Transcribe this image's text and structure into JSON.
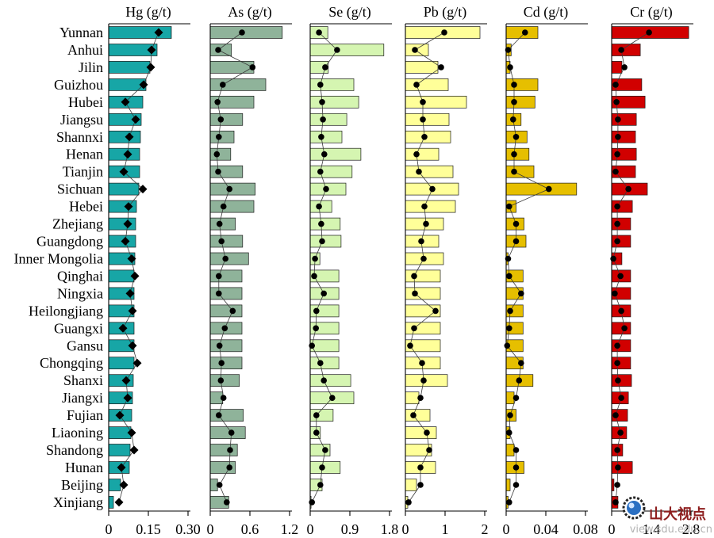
{
  "chart_data": {
    "type": "bar",
    "orientation": "horizontal",
    "grid": false,
    "categories": [
      "Yunnan",
      "Anhui",
      "Jilin",
      "Guizhou",
      "Hubei",
      "Jiangsu",
      "Shannxi",
      "Henan",
      "Tianjin",
      "Sichuan",
      "Hebei",
      "Zhejiang",
      "Guangdong",
      "Inner Mongolia",
      "Qinghai",
      "Ningxia",
      "Heilongjiang",
      "Guangxi",
      "Gansu",
      "Chongqing",
      "Shanxi",
      "Jiangxi",
      "Fujian",
      "Liaoning",
      "Shandong",
      "Hunan",
      "Beijing",
      "Xinjiang"
    ],
    "panels": [
      {
        "title": "Hg (g/t)",
        "xlim": [
          0,
          0.3
        ],
        "tick_values": [
          0,
          0.15,
          0.3
        ],
        "tick_labels": [
          "0",
          "0.15",
          "0.30"
        ],
        "bar_color": "#17a6a6",
        "marker": "diamond",
        "bars": [
          0.237,
          0.183,
          0.156,
          0.141,
          0.129,
          0.123,
          0.12,
          0.117,
          0.117,
          0.114,
          0.105,
          0.102,
          0.102,
          0.099,
          0.096,
          0.096,
          0.096,
          0.096,
          0.096,
          0.096,
          0.093,
          0.09,
          0.087,
          0.084,
          0.081,
          0.078,
          0.045,
          0.018
        ],
        "markers": [
          0.189,
          0.162,
          0.159,
          0.132,
          0.063,
          0.102,
          0.078,
          0.072,
          0.057,
          0.129,
          0.075,
          0.072,
          0.063,
          0.087,
          0.099,
          0.081,
          0.09,
          0.054,
          0.09,
          0.108,
          0.066,
          0.072,
          0.042,
          0.087,
          0.096,
          0.048,
          0.057,
          0.039
        ]
      },
      {
        "title": "As (g/t)",
        "xlim": [
          0,
          1.2
        ],
        "tick_values": [
          0,
          0.6,
          1.2
        ],
        "tick_labels": [
          "0",
          "0.6",
          "1.2"
        ],
        "bar_color": "#8fb39a",
        "marker": "circle",
        "bars": [
          1.09,
          0.32,
          0.66,
          0.84,
          0.66,
          0.49,
          0.36,
          0.31,
          0.49,
          0.68,
          0.66,
          0.38,
          0.49,
          0.58,
          0.48,
          0.48,
          0.48,
          0.48,
          0.48,
          0.48,
          0.44,
          0.19,
          0.5,
          0.53,
          0.41,
          0.38,
          0.11,
          0.28
        ],
        "markers": [
          0.48,
          0.12,
          0.64,
          0.19,
          0.11,
          0.16,
          0.13,
          0.1,
          0.12,
          0.29,
          0.2,
          0.14,
          0.17,
          0.23,
          0.13,
          0.13,
          0.34,
          0.22,
          0.14,
          0.17,
          0.16,
          0.2,
          0.13,
          0.32,
          0.3,
          0.29,
          0.14,
          0.25
        ]
      },
      {
        "title": "Se (g/t)",
        "xlim": [
          0,
          1.8
        ],
        "tick_values": [
          0,
          0.9,
          1.8
        ],
        "tick_labels": [
          "0",
          "0.9",
          "1.8"
        ],
        "bar_color": "#d5f5b1",
        "marker": "circle",
        "bars": [
          0.4,
          1.67,
          0.41,
          0.99,
          1.1,
          0.83,
          0.72,
          1.15,
          0.95,
          0.81,
          0.49,
          0.68,
          0.7,
          0.22,
          0.65,
          0.65,
          0.65,
          0.65,
          0.65,
          0.65,
          0.92,
          0.99,
          0.52,
          0.23,
          0.45,
          0.68,
          0.27,
          0.02
        ],
        "markers": [
          0.2,
          0.61,
          0.34,
          0.23,
          0.27,
          0.29,
          0.25,
          0.32,
          0.23,
          0.36,
          0.2,
          0.25,
          0.27,
          0.11,
          0.09,
          0.31,
          0.14,
          0.13,
          0.04,
          0.23,
          0.31,
          0.5,
          0.14,
          0.14,
          0.34,
          0.27,
          0.23,
          0.04
        ]
      },
      {
        "title": "Pb (g/t)",
        "xlim": [
          0,
          2
        ],
        "tick_values": [
          0,
          1,
          2
        ],
        "tick_labels": [
          "0",
          "1",
          "2"
        ],
        "bar_color": "#ffff99",
        "marker": "circle",
        "bars": [
          1.88,
          0.58,
          0.82,
          1.08,
          1.54,
          1.1,
          1.14,
          0.84,
          1.2,
          1.34,
          1.26,
          0.96,
          0.84,
          0.96,
          0.88,
          0.88,
          0.88,
          0.88,
          0.88,
          0.88,
          1.06,
          0.34,
          0.62,
          0.78,
          0.66,
          0.76,
          0.28,
          0.06
        ],
        "markers": [
          0.98,
          0.24,
          0.9,
          0.28,
          0.44,
          0.44,
          0.48,
          0.28,
          0.34,
          0.68,
          0.48,
          0.52,
          0.4,
          0.46,
          0.22,
          0.24,
          0.76,
          0.22,
          0.12,
          0.42,
          0.46,
          0.38,
          0.2,
          0.54,
          0.6,
          0.38,
          0.38,
          0.08
        ]
      },
      {
        "title": "Cd (g/t)",
        "xlim": [
          0,
          0.08
        ],
        "tick_values": [
          0,
          0.04,
          0.08
        ],
        "tick_labels": [
          "0",
          "0.04",
          "0.08"
        ],
        "bar_color": "#e6bf00",
        "marker": "circle",
        "bars": [
          0.032,
          0.005,
          0.004,
          0.032,
          0.029,
          0.015,
          0.021,
          0.023,
          0.028,
          0.071,
          0.01,
          0.018,
          0.02,
          0.002,
          0.017,
          0.017,
          0.017,
          0.017,
          0.017,
          0.017,
          0.027,
          0.008,
          0.01,
          0.004,
          0.008,
          0.018,
          0.004,
          0.002
        ],
        "markers": [
          0.019,
          0.002,
          0.004,
          0.008,
          0.008,
          0.007,
          0.01,
          0.008,
          0.008,
          0.043,
          0.003,
          0.01,
          0.01,
          0.002,
          0.003,
          0.015,
          0.004,
          0.003,
          0.001,
          0.015,
          0.013,
          0.01,
          0.004,
          0.003,
          0.01,
          0.01,
          0.01,
          0.003
        ]
      },
      {
        "title": "Cr (g/t)",
        "xlim": [
          0,
          2.8
        ],
        "tick_values": [
          0,
          1.4,
          2.8
        ],
        "tick_labels": [
          "0",
          "1.4",
          "2.8"
        ],
        "bar_color": "#d10000",
        "marker": "circle",
        "bars": [
          2.72,
          1.01,
          0.36,
          1.06,
          1.18,
          0.87,
          0.84,
          0.87,
          0.84,
          1.26,
          0.73,
          0.67,
          0.67,
          0.36,
          0.67,
          0.67,
          0.67,
          0.67,
          0.67,
          0.67,
          0.7,
          0.59,
          0.56,
          0.53,
          0.39,
          0.73,
          0.08,
          0.22
        ],
        "markers": [
          1.32,
          0.34,
          0.45,
          0.14,
          0.17,
          0.22,
          0.22,
          0.2,
          0.14,
          0.59,
          0.2,
          0.2,
          0.2,
          0.06,
          0.31,
          0.11,
          0.34,
          0.45,
          0.2,
          0.2,
          0.22,
          0.34,
          0.14,
          0.31,
          0.2,
          0.22,
          0.2,
          0.14
        ]
      }
    ]
  },
  "watermark": {
    "name": "山大视点",
    "url": "view.sdu.edu.cn"
  }
}
